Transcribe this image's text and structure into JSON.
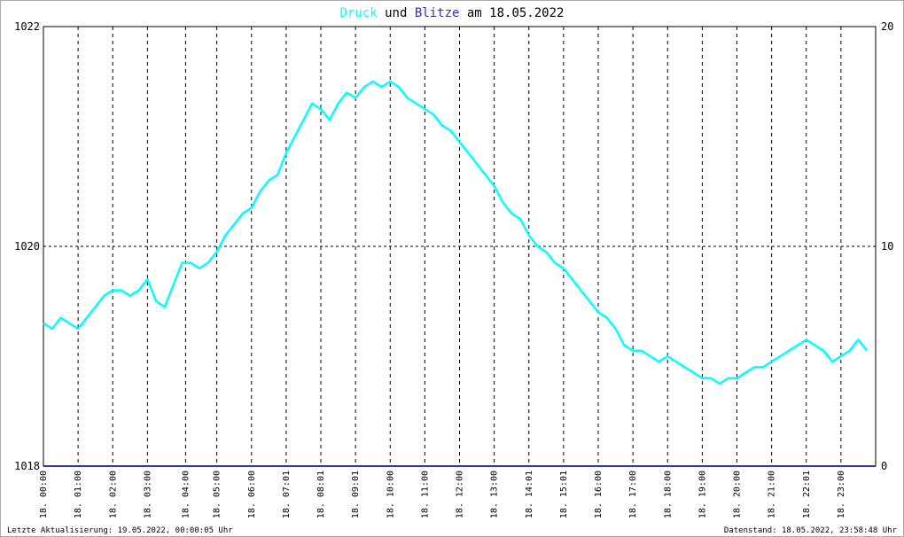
{
  "chart_data": {
    "type": "line",
    "title": {
      "part1": "Druck",
      "part2": " und ",
      "part3": "Blitze",
      "part4": " am 18.05.2022"
    },
    "colors": {
      "druck": "#00ffff",
      "blitze": "#3333aa",
      "title_dark": "#000000",
      "grid": "#000000",
      "border": "#aaaaaa"
    },
    "y_left": {
      "min": 1018,
      "max": 1022,
      "ticks": [
        "1018",
        "1020",
        "1022"
      ]
    },
    "y_right": {
      "min": 0,
      "max": 20,
      "ticks": [
        "0",
        "10",
        "20"
      ]
    },
    "x_range_hours": [
      0,
      24
    ],
    "x_ticks": [
      {
        "h": 0.0,
        "label": "18. 00:00"
      },
      {
        "h": 1.0,
        "label": "18. 01:00"
      },
      {
        "h": 2.0,
        "label": "18. 02:00"
      },
      {
        "h": 3.0,
        "label": "18. 03:00"
      },
      {
        "h": 4.1,
        "label": "18. 04:00"
      },
      {
        "h": 5.0,
        "label": "18. 05:00"
      },
      {
        "h": 6.0,
        "label": "18. 06:00"
      },
      {
        "h": 7.0,
        "label": "18. 07:01"
      },
      {
        "h": 8.0,
        "label": "18. 08:01"
      },
      {
        "h": 9.0,
        "label": "18. 09:01"
      },
      {
        "h": 10.0,
        "label": "18. 10:00"
      },
      {
        "h": 11.0,
        "label": "18. 11:00"
      },
      {
        "h": 12.0,
        "label": "18. 12:00"
      },
      {
        "h": 13.0,
        "label": "18. 13:00"
      },
      {
        "h": 14.0,
        "label": "18. 14:01"
      },
      {
        "h": 15.0,
        "label": "18. 15:01"
      },
      {
        "h": 16.0,
        "label": "18. 16:00"
      },
      {
        "h": 17.0,
        "label": "18. 17:00"
      },
      {
        "h": 18.0,
        "label": "18. 18:00"
      },
      {
        "h": 19.0,
        "label": "18. 19:00"
      },
      {
        "h": 20.0,
        "label": "18. 20:00"
      },
      {
        "h": 21.0,
        "label": "18. 21:00"
      },
      {
        "h": 22.0,
        "label": "18. 22:01"
      },
      {
        "h": 23.0,
        "label": "18. 23:00"
      }
    ],
    "series": [
      {
        "key": "druck",
        "axis": "left",
        "points": [
          [
            0.0,
            1019.3
          ],
          [
            0.25,
            1019.25
          ],
          [
            0.5,
            1019.35
          ],
          [
            0.75,
            1019.3
          ],
          [
            1.0,
            1019.25
          ],
          [
            1.25,
            1019.35
          ],
          [
            1.5,
            1019.45
          ],
          [
            1.75,
            1019.55
          ],
          [
            2.0,
            1019.6
          ],
          [
            2.25,
            1019.6
          ],
          [
            2.5,
            1019.55
          ],
          [
            2.75,
            1019.6
          ],
          [
            3.0,
            1019.7
          ],
          [
            3.25,
            1019.5
          ],
          [
            3.5,
            1019.45
          ],
          [
            3.75,
            1019.65
          ],
          [
            4.0,
            1019.85
          ],
          [
            4.25,
            1019.85
          ],
          [
            4.5,
            1019.8
          ],
          [
            4.75,
            1019.85
          ],
          [
            5.0,
            1019.95
          ],
          [
            5.25,
            1020.1
          ],
          [
            5.5,
            1020.2
          ],
          [
            5.75,
            1020.3
          ],
          [
            6.0,
            1020.35
          ],
          [
            6.25,
            1020.5
          ],
          [
            6.5,
            1020.6
          ],
          [
            6.75,
            1020.65
          ],
          [
            7.0,
            1020.85
          ],
          [
            7.25,
            1021.0
          ],
          [
            7.5,
            1021.15
          ],
          [
            7.75,
            1021.3
          ],
          [
            8.0,
            1021.25
          ],
          [
            8.25,
            1021.15
          ],
          [
            8.5,
            1021.3
          ],
          [
            8.75,
            1021.4
          ],
          [
            9.0,
            1021.35
          ],
          [
            9.25,
            1021.45
          ],
          [
            9.5,
            1021.5
          ],
          [
            9.75,
            1021.45
          ],
          [
            10.0,
            1021.5
          ],
          [
            10.25,
            1021.45
          ],
          [
            10.5,
            1021.35
          ],
          [
            10.75,
            1021.3
          ],
          [
            11.0,
            1021.25
          ],
          [
            11.25,
            1021.2
          ],
          [
            11.5,
            1021.1
          ],
          [
            11.75,
            1021.05
          ],
          [
            12.0,
            1020.95
          ],
          [
            12.25,
            1020.85
          ],
          [
            12.5,
            1020.75
          ],
          [
            12.75,
            1020.65
          ],
          [
            13.0,
            1020.55
          ],
          [
            13.25,
            1020.4
          ],
          [
            13.5,
            1020.3
          ],
          [
            13.75,
            1020.25
          ],
          [
            14.0,
            1020.1
          ],
          [
            14.25,
            1020.0
          ],
          [
            14.5,
            1019.95
          ],
          [
            14.75,
            1019.85
          ],
          [
            15.0,
            1019.8
          ],
          [
            15.25,
            1019.7
          ],
          [
            15.5,
            1019.6
          ],
          [
            15.75,
            1019.5
          ],
          [
            16.0,
            1019.4
          ],
          [
            16.25,
            1019.35
          ],
          [
            16.5,
            1019.25
          ],
          [
            16.75,
            1019.1
          ],
          [
            17.0,
            1019.05
          ],
          [
            17.25,
            1019.05
          ],
          [
            17.5,
            1019.0
          ],
          [
            17.75,
            1018.95
          ],
          [
            18.0,
            1019.0
          ],
          [
            18.25,
            1018.95
          ],
          [
            18.5,
            1018.9
          ],
          [
            18.75,
            1018.85
          ],
          [
            19.0,
            1018.8
          ],
          [
            19.25,
            1018.8
          ],
          [
            19.5,
            1018.75
          ],
          [
            19.75,
            1018.8
          ],
          [
            20.0,
            1018.8
          ],
          [
            20.25,
            1018.85
          ],
          [
            20.5,
            1018.9
          ],
          [
            20.75,
            1018.9
          ],
          [
            21.0,
            1018.95
          ],
          [
            21.25,
            1019.0
          ],
          [
            21.5,
            1019.05
          ],
          [
            21.75,
            1019.1
          ],
          [
            22.0,
            1019.15
          ],
          [
            22.25,
            1019.1
          ],
          [
            22.5,
            1019.05
          ],
          [
            22.75,
            1018.95
          ],
          [
            23.0,
            1019.0
          ],
          [
            23.25,
            1019.05
          ],
          [
            23.5,
            1019.15
          ],
          [
            23.75,
            1019.05
          ]
        ]
      },
      {
        "key": "blitze",
        "axis": "right",
        "points": [
          [
            0,
            0
          ],
          [
            24,
            0
          ]
        ]
      }
    ]
  },
  "footer": {
    "left": "Letzte Aktualisierung: 19.05.2022, 00:00:05 Uhr",
    "right": "Datenstand: 18.05.2022, 23:58:48 Uhr"
  }
}
